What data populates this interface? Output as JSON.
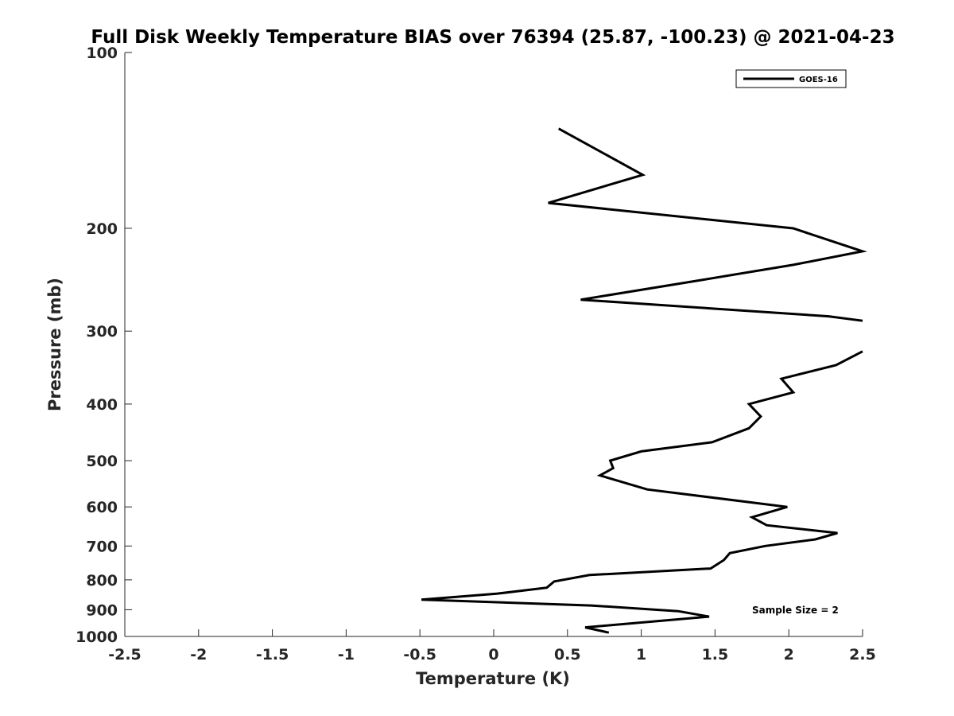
{
  "chart_data": {
    "type": "line",
    "title": "Full Disk Weekly Temperature BIAS over 76394 (25.87, -100.23) @ 2021-04-23",
    "xlabel": "Temperature (K)",
    "ylabel": "Pressure (mb)",
    "xlim": [
      -2.5,
      2.5
    ],
    "ylim": [
      100,
      1000
    ],
    "y_scale": "log",
    "y_reversed": true,
    "grid": false,
    "x_ticks": [
      -2.5,
      -2,
      -1.5,
      -1,
      -0.5,
      0,
      0.5,
      1,
      1.5,
      2,
      2.5
    ],
    "x_tick_labels": [
      "-2.5",
      "-2",
      "-1.5",
      "-1",
      "-0.5",
      "0",
      "0.5",
      "1",
      "1.5",
      "2",
      "2.5"
    ],
    "y_ticks": [
      100,
      200,
      300,
      400,
      500,
      600,
      700,
      800,
      900,
      1000
    ],
    "y_tick_labels": [
      "100",
      "200",
      "300",
      "400",
      "500",
      "600",
      "700",
      "800",
      "900",
      "1000"
    ],
    "legend": {
      "position": "top-right",
      "entries": [
        "GOES-16"
      ]
    },
    "annotation": "Sample Size = 2",
    "series": [
      {
        "name": "GOES-16",
        "color": "#000000",
        "segments": [
          [
            {
              "x": 0.44,
              "y": 135
            },
            {
              "x": 1.01,
              "y": 162
            },
            {
              "x": 0.37,
              "y": 181
            },
            {
              "x": 2.03,
              "y": 200
            },
            {
              "x": 2.5,
              "y": 219
            },
            {
              "x": 2.03,
              "y": 231
            },
            {
              "x": 1.42,
              "y": 245
            },
            {
              "x": 0.59,
              "y": 265
            },
            {
              "x": 2.27,
              "y": 283
            },
            {
              "x": 2.5,
              "y": 288
            }
          ],
          [
            {
              "x": 2.5,
              "y": 325
            },
            {
              "x": 2.32,
              "y": 343
            },
            {
              "x": 1.95,
              "y": 362
            },
            {
              "x": 2.03,
              "y": 382
            },
            {
              "x": 1.73,
              "y": 400
            },
            {
              "x": 1.81,
              "y": 420
            },
            {
              "x": 1.73,
              "y": 440
            },
            {
              "x": 1.48,
              "y": 465
            },
            {
              "x": 1.0,
              "y": 482
            },
            {
              "x": 0.79,
              "y": 500
            },
            {
              "x": 0.81,
              "y": 515
            },
            {
              "x": 0.72,
              "y": 530
            },
            {
              "x": 1.04,
              "y": 560
            },
            {
              "x": 1.99,
              "y": 600
            },
            {
              "x": 1.75,
              "y": 625
            },
            {
              "x": 1.85,
              "y": 645
            },
            {
              "x": 2.33,
              "y": 665
            },
            {
              "x": 2.18,
              "y": 682
            },
            {
              "x": 1.84,
              "y": 700
            },
            {
              "x": 1.6,
              "y": 720
            },
            {
              "x": 1.56,
              "y": 740
            },
            {
              "x": 1.47,
              "y": 765
            },
            {
              "x": 0.65,
              "y": 785
            },
            {
              "x": 0.41,
              "y": 805
            },
            {
              "x": 0.36,
              "y": 825
            },
            {
              "x": 0.02,
              "y": 845
            },
            {
              "x": -0.49,
              "y": 865
            },
            {
              "x": 0.66,
              "y": 885
            },
            {
              "x": 1.25,
              "y": 905
            },
            {
              "x": 1.46,
              "y": 925
            },
            {
              "x": 0.62,
              "y": 965
            },
            {
              "x": 0.78,
              "y": 985
            }
          ]
        ]
      }
    ]
  }
}
